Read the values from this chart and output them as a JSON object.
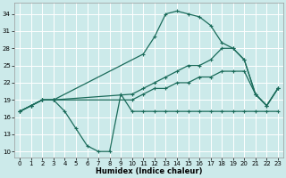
{
  "xlabel": "Humidex (Indice chaleur)",
  "bg_color": "#cceaea",
  "grid_color": "#ffffff",
  "line_color": "#1a6b5a",
  "xlim": [
    -0.5,
    23.5
  ],
  "ylim": [
    9,
    36
  ],
  "yticks": [
    10,
    13,
    16,
    19,
    22,
    25,
    28,
    31,
    34
  ],
  "xticks": [
    0,
    1,
    2,
    3,
    4,
    5,
    6,
    7,
    8,
    9,
    10,
    11,
    12,
    13,
    14,
    15,
    16,
    17,
    18,
    19,
    20,
    21,
    22,
    23
  ],
  "line_dip": {
    "x": [
      0,
      1,
      2,
      3,
      4,
      5,
      6,
      7,
      8,
      9,
      10,
      11,
      12,
      13,
      14,
      15,
      16,
      17,
      18,
      19,
      20,
      21,
      22,
      23
    ],
    "y": [
      17,
      18,
      19,
      19,
      17,
      14,
      11,
      10,
      10,
      20,
      17,
      17,
      17,
      17,
      17,
      17,
      17,
      17,
      17,
      17,
      17,
      17,
      17,
      17
    ]
  },
  "line_low": {
    "x": [
      0,
      1,
      2,
      3,
      10,
      11,
      12,
      13,
      14,
      15,
      16,
      17,
      18,
      19,
      20,
      21,
      22,
      23
    ],
    "y": [
      17,
      18,
      19,
      19,
      19,
      20,
      21,
      21,
      22,
      22,
      23,
      23,
      24,
      24,
      24,
      20,
      18,
      21
    ]
  },
  "line_mid": {
    "x": [
      0,
      1,
      2,
      3,
      10,
      11,
      12,
      13,
      14,
      15,
      16,
      17,
      18,
      19,
      20,
      21,
      22,
      23
    ],
    "y": [
      17,
      18,
      19,
      19,
      20,
      21,
      22,
      23,
      24,
      25,
      25,
      26,
      28,
      28,
      26,
      20,
      18,
      21
    ]
  },
  "line_peak": {
    "x": [
      0,
      1,
      2,
      3,
      11,
      12,
      13,
      14,
      15,
      16,
      17,
      18,
      19,
      20,
      21,
      22,
      23
    ],
    "y": [
      17,
      18,
      19,
      19,
      27,
      30,
      34,
      34.5,
      34,
      33.5,
      32,
      29,
      28,
      26,
      20,
      18,
      21
    ]
  }
}
